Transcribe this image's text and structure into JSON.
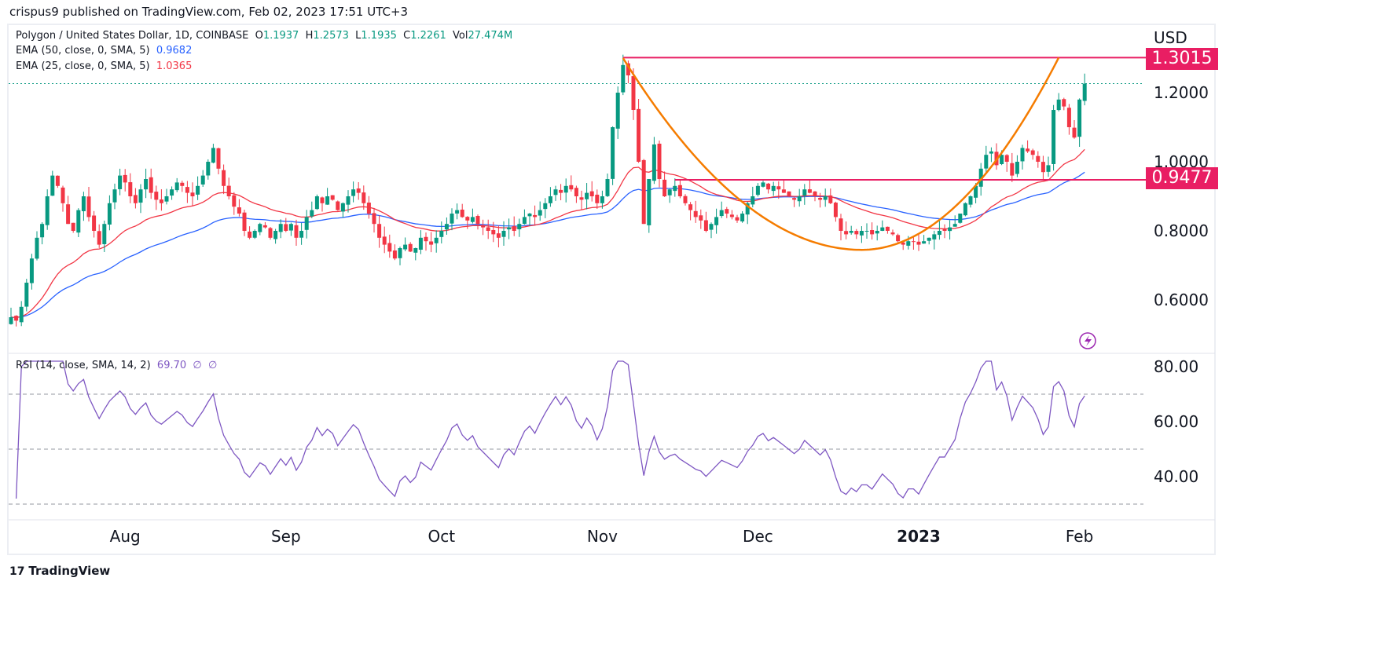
{
  "publish_line": "crispus9 published on TradingView.com, Feb 02, 2023 17:51 UTC+3",
  "symbol": {
    "name": "Polygon / United States Dollar, 1D, COINBASE",
    "o_label": "O",
    "o": "1.1937",
    "h_label": "H",
    "h": "1.2573",
    "l_label": "L",
    "l": "1.1935",
    "c_label": "C",
    "c": "1.2261",
    "vol_label": "Vol",
    "vol": "27.474M"
  },
  "ema50": {
    "label": "EMA (50, close, 0, SMA, 5)",
    "value": "0.9682",
    "color": "#2962ff"
  },
  "ema25": {
    "label": "EMA (25, close, 0, SMA, 5)",
    "value": "1.0365",
    "color": "#f23645"
  },
  "rsi": {
    "label": "RSI (14, close, SMA, 14, 2)",
    "value": "69.70",
    "extra1": "∅",
    "extra2": "∅",
    "color": "#7e57c2"
  },
  "currency": "USD",
  "tags": {
    "resistance": "1.3015",
    "support": "0.9477"
  },
  "footer_logo": "TradingView",
  "chart_data": {
    "type": "candlestick",
    "start_date": "2022-07-10",
    "closes": [
      0.55,
      0.54,
      0.58,
      0.65,
      0.72,
      0.78,
      0.82,
      0.9,
      0.96,
      0.93,
      0.88,
      0.82,
      0.8,
      0.86,
      0.9,
      0.84,
      0.8,
      0.76,
      0.82,
      0.88,
      0.92,
      0.96,
      0.94,
      0.9,
      0.88,
      0.92,
      0.95,
      0.91,
      0.89,
      0.88,
      0.9,
      0.92,
      0.94,
      0.93,
      0.91,
      0.9,
      0.93,
      0.96,
      1.0,
      1.04,
      0.98,
      0.93,
      0.9,
      0.87,
      0.85,
      0.8,
      0.78,
      0.8,
      0.82,
      0.81,
      0.78,
      0.8,
      0.82,
      0.8,
      0.82,
      0.78,
      0.8,
      0.84,
      0.86,
      0.9,
      0.88,
      0.9,
      0.89,
      0.86,
      0.88,
      0.9,
      0.92,
      0.91,
      0.88,
      0.85,
      0.82,
      0.78,
      0.76,
      0.74,
      0.72,
      0.75,
      0.76,
      0.74,
      0.75,
      0.78,
      0.77,
      0.76,
      0.78,
      0.8,
      0.82,
      0.85,
      0.86,
      0.84,
      0.83,
      0.84,
      0.82,
      0.81,
      0.8,
      0.79,
      0.78,
      0.8,
      0.81,
      0.8,
      0.82,
      0.84,
      0.85,
      0.84,
      0.86,
      0.88,
      0.9,
      0.92,
      0.91,
      0.93,
      0.92,
      0.9,
      0.89,
      0.91,
      0.9,
      0.88,
      0.9,
      0.95,
      1.1,
      1.2,
      1.28,
      1.25,
      1.15,
      1.0,
      0.82,
      0.95,
      1.05,
      0.95,
      0.9,
      0.92,
      0.93,
      0.9,
      0.88,
      0.86,
      0.84,
      0.83,
      0.8,
      0.82,
      0.84,
      0.86,
      0.85,
      0.84,
      0.83,
      0.85,
      0.88,
      0.9,
      0.93,
      0.94,
      0.92,
      0.93,
      0.92,
      0.91,
      0.9,
      0.89,
      0.9,
      0.92,
      0.91,
      0.9,
      0.89,
      0.9,
      0.88,
      0.84,
      0.8,
      0.79,
      0.8,
      0.79,
      0.8,
      0.8,
      0.79,
      0.8,
      0.81,
      0.8,
      0.79,
      0.77,
      0.76,
      0.77,
      0.77,
      0.76,
      0.77,
      0.78,
      0.79,
      0.8,
      0.8,
      0.81,
      0.82,
      0.85,
      0.88,
      0.9,
      0.93,
      0.98,
      1.02,
      1.03,
      0.99,
      1.02,
      1.0,
      0.96,
      1.0,
      1.04,
      1.03,
      1.02,
      1.0,
      0.97,
      0.99,
      1.15,
      1.18,
      1.16,
      1.1,
      1.07,
      1.18,
      1.226
    ],
    "price_ticks": [
      "1.2000",
      "1.0000",
      "0.8000",
      "0.6000"
    ],
    "price_tick_values": [
      1.2,
      1.0,
      0.8,
      0.6
    ],
    "rsi_ticks": [
      "80.00",
      "60.00",
      "40.00"
    ],
    "rsi_tick_values": [
      80,
      60,
      40
    ],
    "rsi_bands": [
      70,
      50,
      30
    ],
    "x_ticks": [
      {
        "label": "Aug",
        "index": 22
      },
      {
        "label": "Sep",
        "index": 53
      },
      {
        "label": "Oct",
        "index": 83
      },
      {
        "label": "Nov",
        "index": 114
      },
      {
        "label": "Dec",
        "index": 144
      },
      {
        "label": "2023",
        "index": 175,
        "bold": true
      },
      {
        "label": "Feb",
        "index": 206
      }
    ],
    "resistance": {
      "value": 1.3015,
      "from_index": 118
    },
    "support": {
      "value": 0.9477,
      "from_index": 128
    },
    "cup_curve": {
      "start_index": 118,
      "start": 1.3,
      "bottom_index": 164,
      "bottom": 0.745,
      "end_index": 202,
      "end": 1.3015
    },
    "last_price": 1.2261
  }
}
